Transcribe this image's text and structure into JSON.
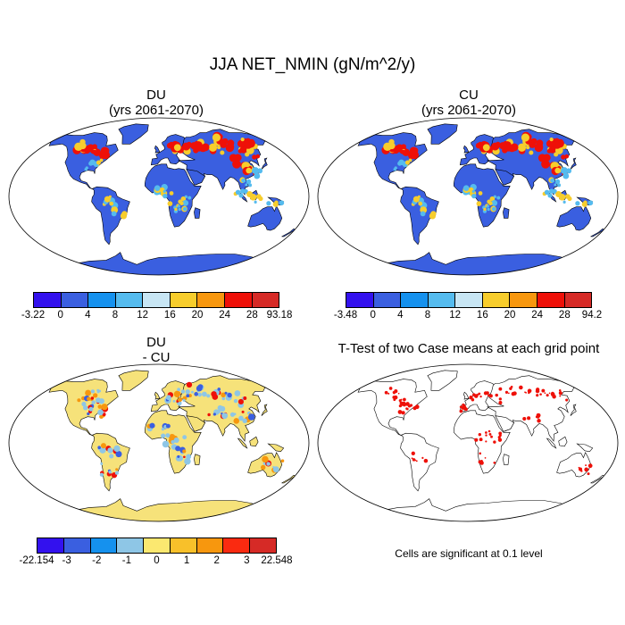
{
  "title": "JJA NET_NMIN (gN/m^2/y)",
  "panels": {
    "du": {
      "title_line1": "DU",
      "title_line2": "(yrs 2061-2070)"
    },
    "cu": {
      "title_line1": "CU",
      "title_line2": "(yrs 2061-2070)"
    },
    "diff": {
      "title_line1": "DU",
      "title_line2": "- CU"
    },
    "ttest": {
      "title": "T-Test of two Case means at each grid point",
      "note": "Cells are significant at 0.1 level"
    }
  },
  "colorbars": {
    "du": {
      "colors": [
        "#3311ee",
        "#3a5fe0",
        "#1591ee",
        "#55bbee",
        "#c8e6f4",
        "#f7cd2c",
        "#f7970e",
        "#ee1008",
        "#d62a26"
      ],
      "labels": [
        "-3.22",
        "0",
        "4",
        "8",
        "12",
        "16",
        "20",
        "24",
        "28",
        "93.18"
      ]
    },
    "cu": {
      "colors": [
        "#3311ee",
        "#3a5fe0",
        "#1591ee",
        "#55bbee",
        "#c8e6f4",
        "#f7cd2c",
        "#f7970e",
        "#ee1008",
        "#d62a26"
      ],
      "labels": [
        "-3.48",
        "0",
        "4",
        "8",
        "12",
        "16",
        "20",
        "24",
        "28",
        "94.2"
      ]
    },
    "diff": {
      "colors": [
        "#3311ee",
        "#3a5fe0",
        "#1591ee",
        "#8ec6e6",
        "#fbe870",
        "#f8c02a",
        "#f7970e",
        "#fa2a10",
        "#d62a26"
      ],
      "labels": [
        "-22.154",
        "-3",
        "-2",
        "-1",
        "0",
        "1",
        "2",
        "3",
        "22.548"
      ]
    }
  },
  "map_style": {
    "ocean": "#ffffff",
    "coast": "#000000",
    "du_land": "#3a5fe0",
    "du_hot": "#ee1008",
    "du_warm": "#f7cd2c",
    "du_mid": "#55bbee",
    "diff_land": "#f6e27a",
    "diff_neg": "#8ec6e6",
    "diff_strong": "#3a5fe0",
    "diff_pos": "#f7970e",
    "sig": "#ee1008",
    "antarctica_du": "#3a5fe0",
    "antarctica_diff": "#f6e27a"
  }
}
